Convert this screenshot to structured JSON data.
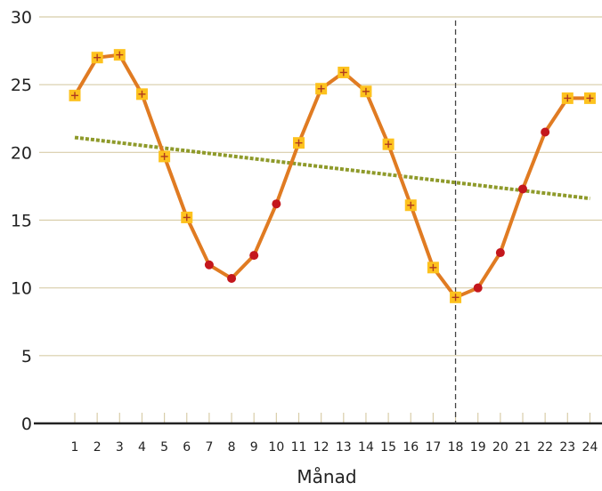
{
  "chart_data": {
    "type": "line",
    "xlabel": "Månad",
    "ylabel": "",
    "title": "",
    "ylim": [
      0,
      30
    ],
    "yticks": [
      "0",
      "5",
      "10",
      "15",
      "20",
      "25",
      "30"
    ],
    "ytick_values": [
      0,
      5,
      10,
      15,
      20,
      25,
      30
    ],
    "categories": [
      "1",
      "2",
      "3",
      "4",
      "5",
      "6",
      "7",
      "8",
      "9",
      "10",
      "11",
      "12",
      "13",
      "14",
      "15",
      "16",
      "17",
      "18",
      "19",
      "20",
      "21",
      "22",
      "23",
      "24"
    ],
    "grid": "horizontal",
    "series": [
      {
        "type": "line",
        "color": "#E07B22",
        "values": [
          24.2,
          27.0,
          27.2,
          24.3,
          19.7,
          15.2,
          11.7,
          10.7,
          12.4,
          16.2,
          20.7,
          24.7,
          25.9,
          24.5,
          20.6,
          16.1,
          11.5,
          9.3,
          10.0,
          12.6,
          17.3,
          21.5,
          24.0,
          24.0
        ],
        "marker_styles": [
          "square",
          "square",
          "square",
          "square",
          "square",
          "square",
          "circle",
          "circle",
          "circle",
          "circle",
          "square",
          "square",
          "square",
          "square",
          "square",
          "square",
          "square",
          "square",
          "circle",
          "circle",
          "circle",
          "circle",
          "square",
          "square"
        ]
      },
      {
        "type": "trend-line",
        "color": "#8E9A2A",
        "x": [
          1,
          24
        ],
        "values": [
          21.1,
          16.6
        ]
      }
    ],
    "vline": {
      "x": 18,
      "style": "dashed"
    },
    "colors": {
      "marker_square": "#FDC21E",
      "marker_plus": "#B03A1E",
      "marker_circle": "#C4171D",
      "grid": "#D8CDA9",
      "axis": "#222222"
    }
  }
}
